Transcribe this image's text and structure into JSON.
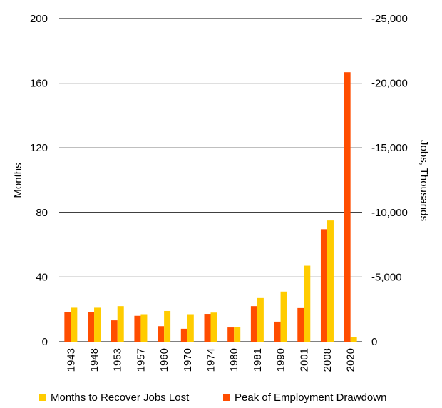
{
  "chart_data": {
    "type": "bar",
    "categories": [
      "1943",
      "1948",
      "1953",
      "1957",
      "1960",
      "1970",
      "1974",
      "1980",
      "1981",
      "1990",
      "2001",
      "2008",
      "2020"
    ],
    "series": [
      {
        "name": "Months to Recover Jobs Lost",
        "axis": "left",
        "color": "#FFCC00",
        "values": [
          21,
          21,
          22,
          17,
          19,
          17,
          18,
          9,
          27,
          31,
          47,
          75,
          3
        ]
      },
      {
        "name": "Peak of Employment Drawdown",
        "axis": "right",
        "color": "#FF4D00",
        "values": [
          -2300,
          -2300,
          -1650,
          -2000,
          -1200,
          -1000,
          -2150,
          -1100,
          -2750,
          -1550,
          -2600,
          -8700,
          -20850
        ]
      }
    ],
    "y_left": {
      "label": "Months",
      "range": [
        0,
        200
      ],
      "ticks": [
        "0",
        "40",
        "80",
        "120",
        "160",
        "200"
      ]
    },
    "y_right": {
      "label": "Jobs, Thousands",
      "range": [
        0,
        -25000
      ],
      "ticks": [
        "0",
        "-5,000",
        "-10,000",
        "-15,000",
        "-20,000",
        "-25,000"
      ]
    },
    "grid": true,
    "legend_position": "bottom"
  }
}
